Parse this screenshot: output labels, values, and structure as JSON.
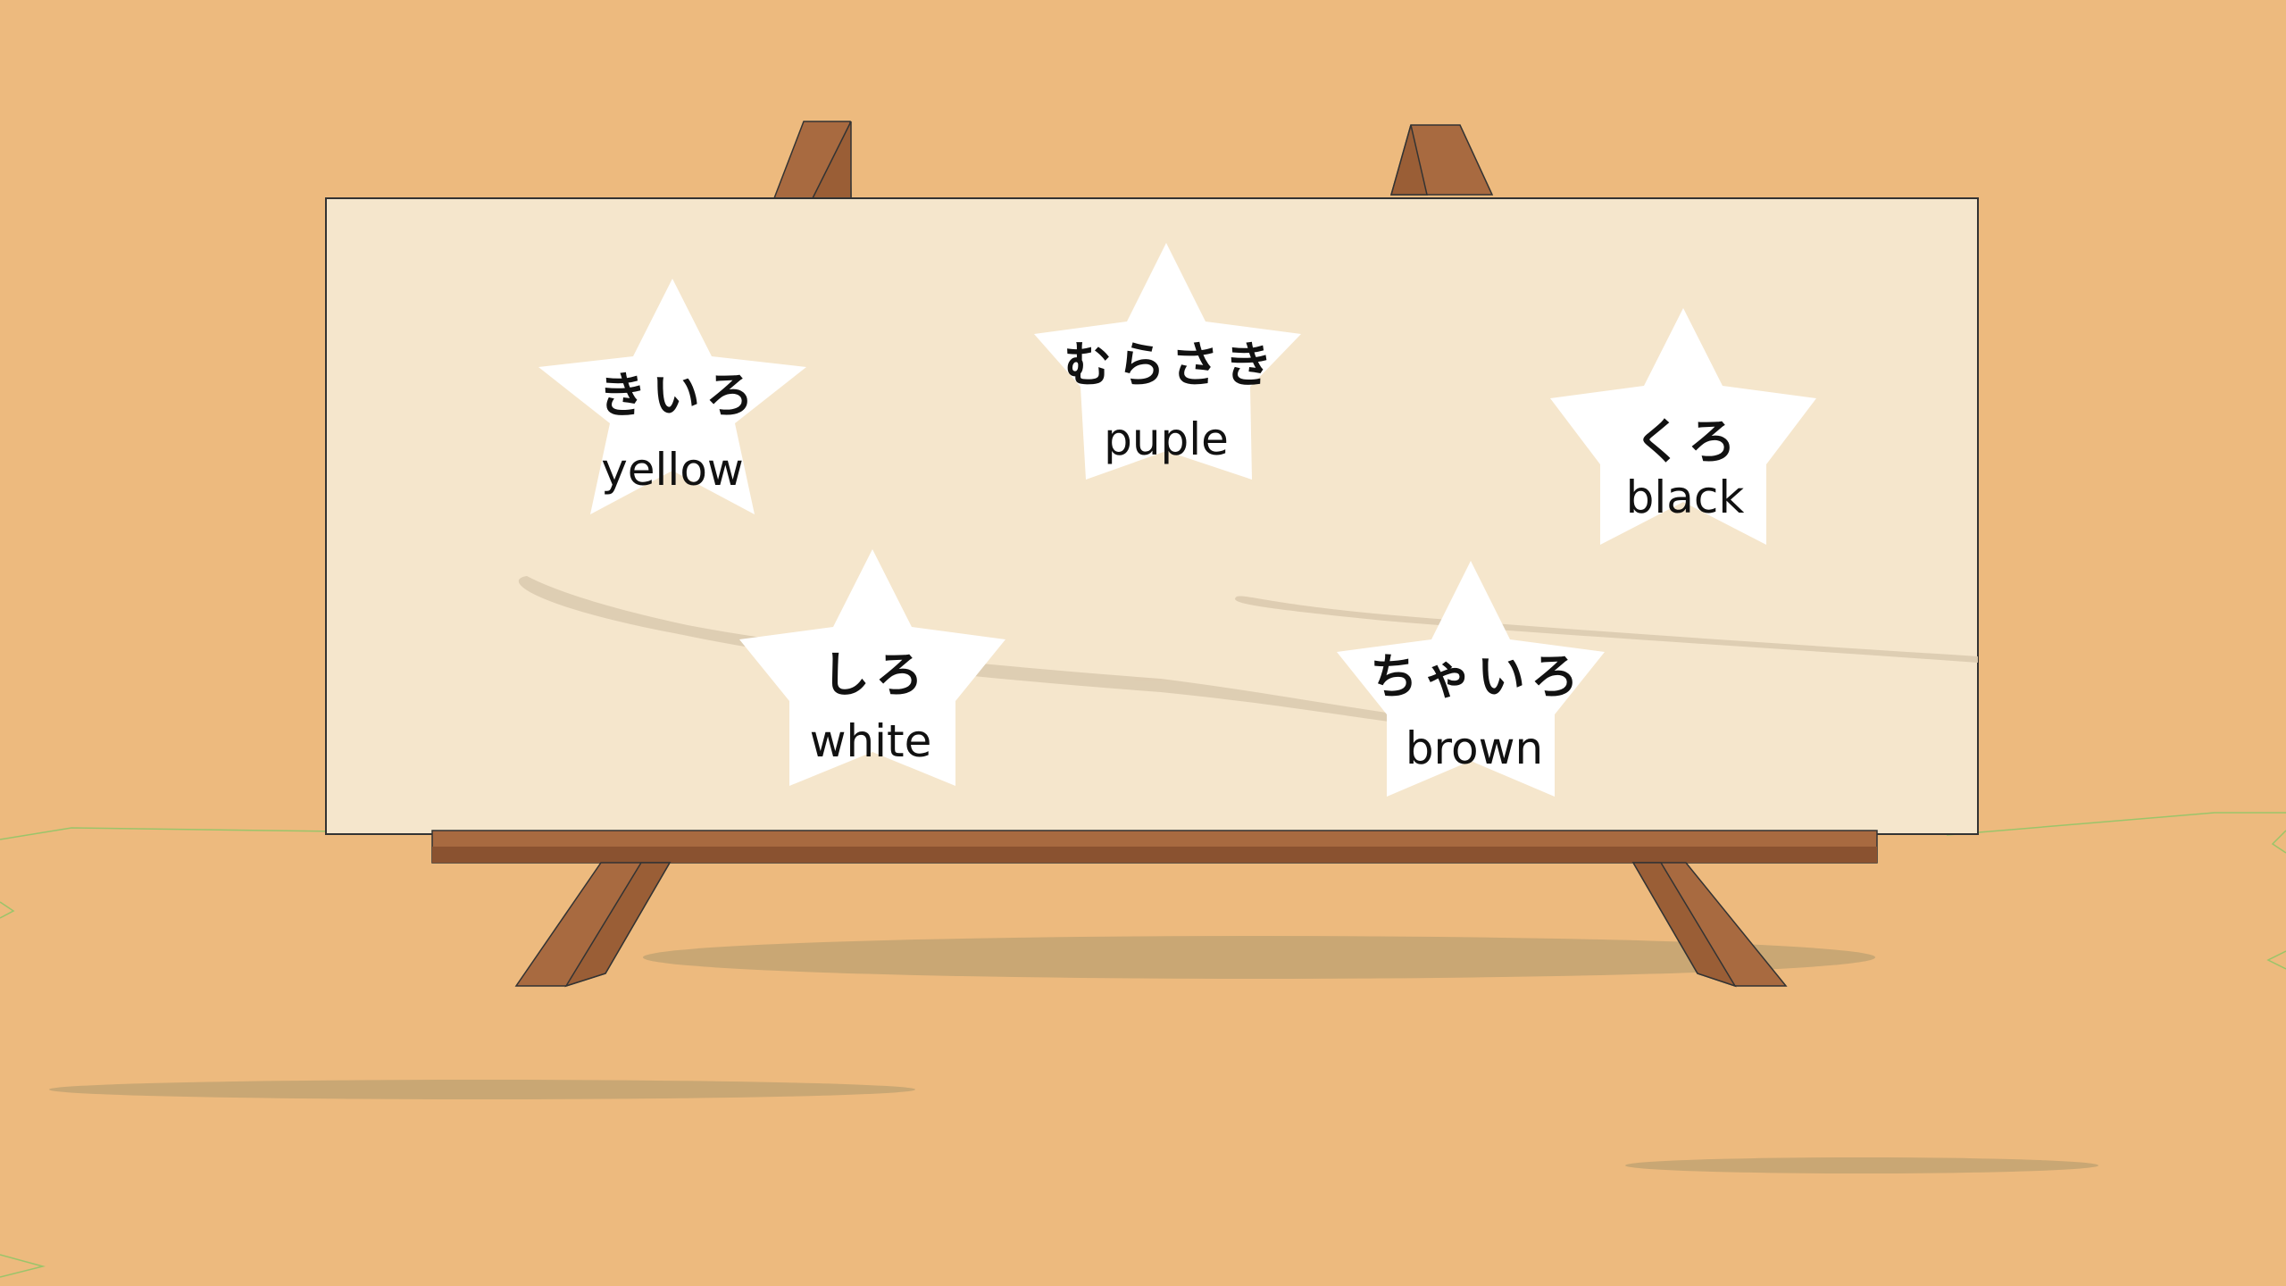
{
  "colors": {
    "background": "#EDBA7E",
    "board": "#F5E6CC",
    "board_border": "#333333",
    "easel_wood": "#A86A40",
    "easel_wood_dark": "#8A5230",
    "shadow": "#C9A774",
    "grass_line": "#9BC46A",
    "star": "#FFFFFF",
    "text": "#111111"
  },
  "board": {
    "stars": [
      {
        "japanese": "きいろ",
        "english": "yellow",
        "icon": "star-icon"
      },
      {
        "japanese": "むらさき",
        "english": "puple",
        "icon": "star-icon"
      },
      {
        "japanese": "くろ",
        "english": "black",
        "icon": "star-icon"
      },
      {
        "japanese": "しろ",
        "english": "white",
        "icon": "star-icon"
      },
      {
        "japanese": "ちゃいろ",
        "english": "brown",
        "icon": "star-icon"
      }
    ]
  }
}
